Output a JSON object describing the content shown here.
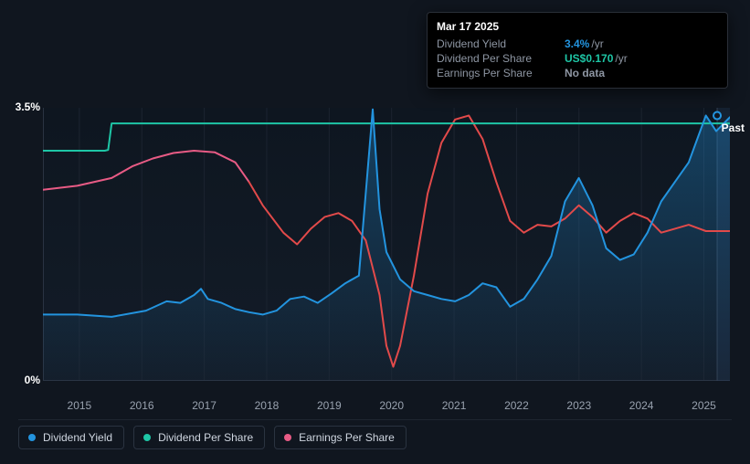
{
  "chart": {
    "type": "line",
    "background_color": "#10161f",
    "plot_background_gradient": [
      "#0e1620",
      "#131c28"
    ],
    "grid_color": "#1c2430",
    "axis_line_color": "#2a3342",
    "ytick_label_color": "#ffffff",
    "xtick_label_color": "#99a2af",
    "ytick_fontsize": 12,
    "xtick_fontsize": 12,
    "ylim": [
      0,
      3.5
    ],
    "yticks": [
      {
        "v": 0,
        "label": "0%"
      },
      {
        "v": 3.5,
        "label": "3.5%"
      }
    ],
    "x_range": [
      "2014-06",
      "2025-06"
    ],
    "xticks": [
      "2015",
      "2016",
      "2017",
      "2018",
      "2019",
      "2020",
      "2021",
      "2022",
      "2023",
      "2024",
      "2025"
    ],
    "past_label": "Past",
    "crosshair_x": "2025-03-17",
    "crosshair_color": "#334052",
    "future_overlay_color": "rgba(40,60,90,0.30)",
    "legend": [
      {
        "label": "Dividend Yield",
        "color": "#2394df"
      },
      {
        "label": "Dividend Per Share",
        "color": "#1ec6a6"
      },
      {
        "label": "Earnings Per Share",
        "color": "#e85b85"
      }
    ],
    "series": {
      "dividend_yield": {
        "color": "#2394df",
        "stroke_width": 2,
        "fill_gradient": [
          "rgba(35,148,223,0.35)",
          "rgba(35,148,223,0.02)"
        ],
        "points": [
          [
            0.0,
            0.85
          ],
          [
            0.05,
            0.85
          ],
          [
            0.1,
            0.82
          ],
          [
            0.15,
            0.9
          ],
          [
            0.18,
            1.02
          ],
          [
            0.2,
            1.0
          ],
          [
            0.22,
            1.1
          ],
          [
            0.23,
            1.18
          ],
          [
            0.24,
            1.05
          ],
          [
            0.26,
            1.0
          ],
          [
            0.28,
            0.92
          ],
          [
            0.3,
            0.88
          ],
          [
            0.32,
            0.85
          ],
          [
            0.34,
            0.9
          ],
          [
            0.36,
            1.05
          ],
          [
            0.38,
            1.08
          ],
          [
            0.4,
            1.0
          ],
          [
            0.42,
            1.12
          ],
          [
            0.44,
            1.25
          ],
          [
            0.46,
            1.35
          ],
          [
            0.48,
            3.48
          ],
          [
            0.49,
            2.2
          ],
          [
            0.5,
            1.65
          ],
          [
            0.52,
            1.3
          ],
          [
            0.54,
            1.15
          ],
          [
            0.56,
            1.1
          ],
          [
            0.58,
            1.05
          ],
          [
            0.6,
            1.02
          ],
          [
            0.62,
            1.1
          ],
          [
            0.64,
            1.25
          ],
          [
            0.66,
            1.2
          ],
          [
            0.68,
            0.95
          ],
          [
            0.7,
            1.05
          ],
          [
            0.72,
            1.3
          ],
          [
            0.74,
            1.6
          ],
          [
            0.76,
            2.3
          ],
          [
            0.78,
            2.6
          ],
          [
            0.8,
            2.25
          ],
          [
            0.82,
            1.7
          ],
          [
            0.84,
            1.55
          ],
          [
            0.86,
            1.62
          ],
          [
            0.88,
            1.9
          ],
          [
            0.9,
            2.3
          ],
          [
            0.92,
            2.55
          ],
          [
            0.94,
            2.8
          ],
          [
            0.965,
            3.4
          ],
          [
            0.98,
            3.2
          ],
          [
            1.0,
            3.38
          ]
        ]
      },
      "dividend_per_share": {
        "color": "#1ec6a6",
        "stroke_width": 2,
        "points": [
          [
            0.0,
            2.95
          ],
          [
            0.05,
            2.95
          ],
          [
            0.09,
            2.95
          ],
          [
            0.095,
            2.96
          ],
          [
            0.1,
            3.3
          ],
          [
            0.12,
            3.3
          ],
          [
            0.2,
            3.3
          ],
          [
            0.3,
            3.3
          ],
          [
            0.4,
            3.3
          ],
          [
            0.5,
            3.3
          ],
          [
            0.6,
            3.3
          ],
          [
            0.7,
            3.3
          ],
          [
            0.8,
            3.3
          ],
          [
            0.9,
            3.3
          ],
          [
            0.965,
            3.3
          ],
          [
            1.0,
            3.3
          ]
        ]
      },
      "earnings_per_share": {
        "color": "#e85b85",
        "color_recent": "#e24a4a",
        "stroke_width": 2,
        "points": [
          [
            0.0,
            2.45
          ],
          [
            0.05,
            2.5
          ],
          [
            0.1,
            2.6
          ],
          [
            0.13,
            2.75
          ],
          [
            0.16,
            2.85
          ],
          [
            0.19,
            2.92
          ],
          [
            0.22,
            2.95
          ],
          [
            0.25,
            2.93
          ],
          [
            0.28,
            2.8
          ],
          [
            0.3,
            2.55
          ],
          [
            0.32,
            2.25
          ],
          [
            0.35,
            1.9
          ],
          [
            0.37,
            1.75
          ],
          [
            0.39,
            1.95
          ],
          [
            0.41,
            2.1
          ],
          [
            0.43,
            2.15
          ],
          [
            0.45,
            2.05
          ],
          [
            0.47,
            1.8
          ],
          [
            0.49,
            1.1
          ],
          [
            0.5,
            0.45
          ],
          [
            0.51,
            0.18
          ],
          [
            0.52,
            0.45
          ],
          [
            0.54,
            1.35
          ],
          [
            0.56,
            2.4
          ],
          [
            0.58,
            3.05
          ],
          [
            0.6,
            3.35
          ],
          [
            0.62,
            3.4
          ],
          [
            0.64,
            3.1
          ],
          [
            0.66,
            2.55
          ],
          [
            0.68,
            2.05
          ],
          [
            0.7,
            1.9
          ],
          [
            0.72,
            2.0
          ],
          [
            0.74,
            1.98
          ],
          [
            0.76,
            2.08
          ],
          [
            0.78,
            2.25
          ],
          [
            0.8,
            2.1
          ],
          [
            0.82,
            1.9
          ],
          [
            0.84,
            2.05
          ],
          [
            0.86,
            2.15
          ],
          [
            0.88,
            2.08
          ],
          [
            0.9,
            1.9
          ],
          [
            0.92,
            1.95
          ],
          [
            0.94,
            2.0
          ],
          [
            0.965,
            1.92
          ],
          [
            1.0,
            1.92
          ]
        ]
      }
    }
  },
  "tooltip": {
    "date": "Mar 17 2025",
    "rows": [
      {
        "label": "Dividend Yield",
        "value": "3.4%",
        "unit": "/yr",
        "value_color": "#2394df"
      },
      {
        "label": "Dividend Per Share",
        "value": "US$0.170",
        "unit": "/yr",
        "value_color": "#1ec6a6"
      },
      {
        "label": "Earnings Per Share",
        "value": "No data",
        "unit": "",
        "value_color": "#8e96a3"
      }
    ],
    "bg_color": "#000000",
    "border_color": "#2a2f38"
  }
}
